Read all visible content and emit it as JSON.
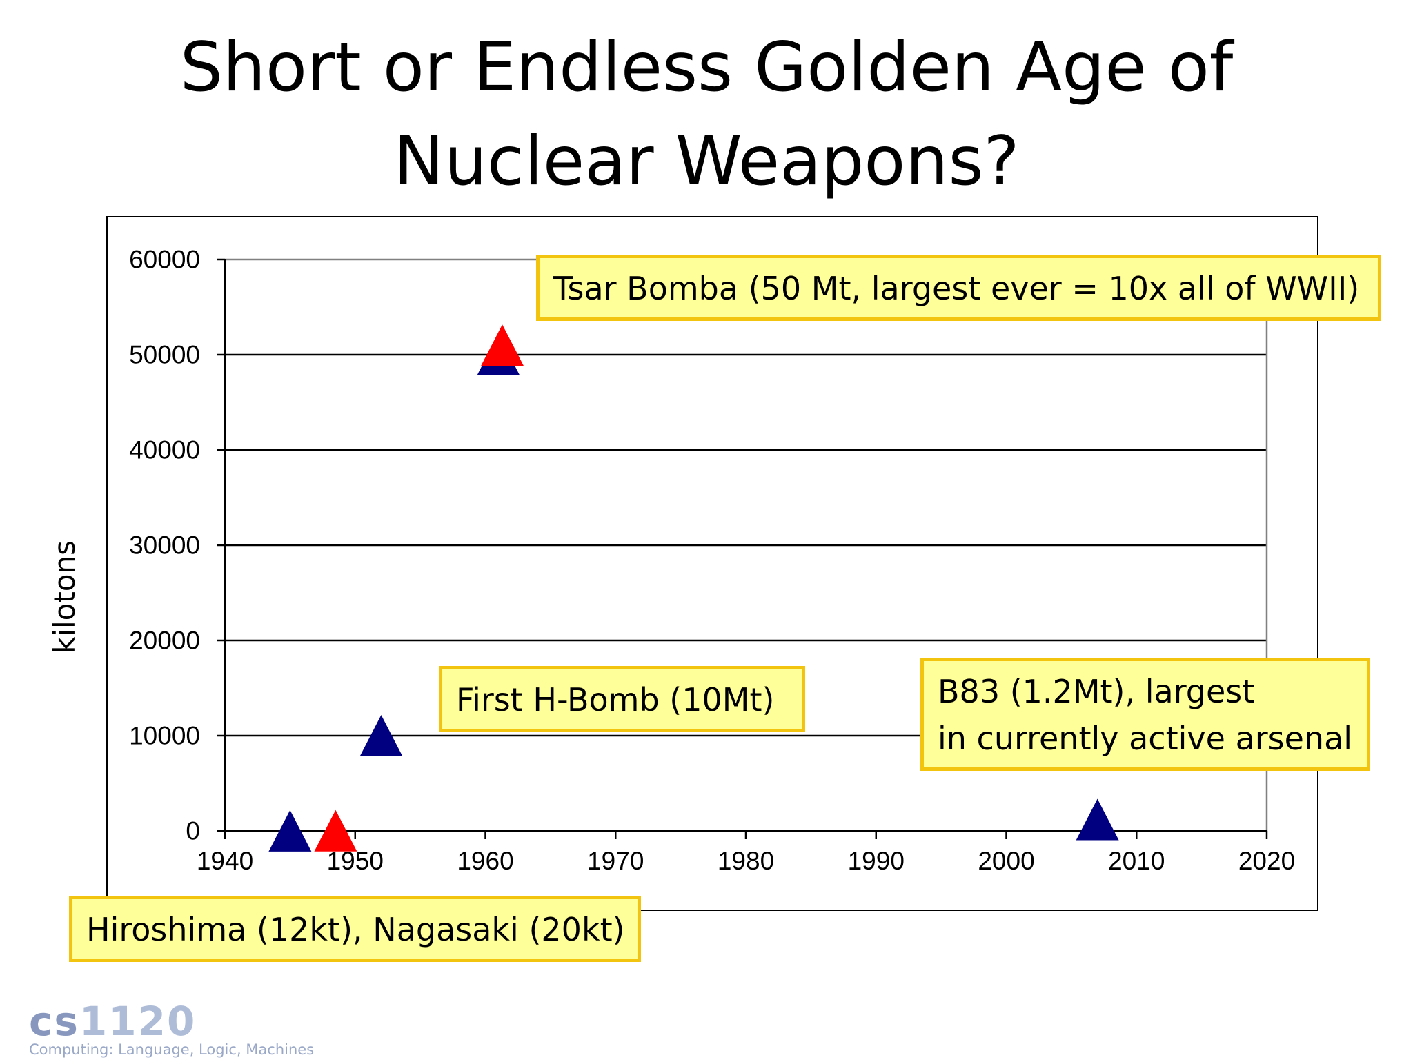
{
  "slide": {
    "title_line1": "Short or Endless Golden Age of",
    "title_line2": "Nuclear Weapons?"
  },
  "chart_data": {
    "type": "scatter",
    "title": "",
    "xlabel": "",
    "ylabel": "kilotons",
    "xlim": [
      1940,
      2020
    ],
    "ylim": [
      0,
      60000
    ],
    "xticks": [
      1940,
      1950,
      1960,
      1970,
      1980,
      1990,
      2000,
      2010,
      2020
    ],
    "yticks": [
      0,
      10000,
      20000,
      30000,
      40000,
      50000,
      60000
    ],
    "grid": "horizontal",
    "series": [
      {
        "color": "#000080",
        "marker": "triangle",
        "points": [
          {
            "x": 1945,
            "y": 12
          },
          {
            "x": 1952,
            "y": 10000
          },
          {
            "x": 1961,
            "y": 50000
          },
          {
            "x": 2007,
            "y": 1200
          }
        ]
      },
      {
        "color": "#ff0000",
        "marker": "triangle",
        "points": [
          {
            "x": 1948.5,
            "y": 20
          },
          {
            "x": 1961.3,
            "y": 51000
          }
        ]
      }
    ]
  },
  "annotations": {
    "tsar_bomba": "Tsar Bomba (50 Mt, largest ever = 10x all of WWII)",
    "first_h_bomb": "First H-Bomb (10Mt)",
    "b83_line1": "B83 (1.2Mt), largest",
    "b83_line2": "in currently active arsenal",
    "hiroshima_nagasaki": "Hiroshima (12kt), Nagasaki (20kt)"
  },
  "logo": {
    "text_prefix": "cs",
    "text_number": "1120",
    "subtitle": "Computing: Language, Logic, Machines"
  }
}
